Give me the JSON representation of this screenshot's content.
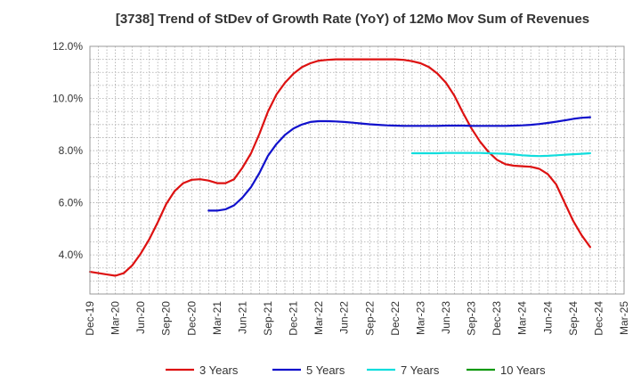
{
  "chart_data": {
    "type": "line",
    "title": "[3738]  Trend of StDev of Growth Rate (YoY) of 12Mo Mov Sum of Revenues",
    "xlabel": "",
    "ylabel": "",
    "ylim": [
      2.5,
      12.0
    ],
    "y_ticks": [
      4.0,
      6.0,
      8.0,
      10.0,
      12.0
    ],
    "y_tick_labels": [
      "4.0%",
      "6.0%",
      "8.0%",
      "10.0%",
      "12.0%"
    ],
    "x_tick_labels": [
      "Dec-19",
      "Mar-20",
      "Jun-20",
      "Sep-20",
      "Dec-20",
      "Mar-21",
      "Jun-21",
      "Sep-21",
      "Dec-21",
      "Mar-22",
      "Jun-22",
      "Sep-22",
      "Dec-22",
      "Mar-23",
      "Jun-23",
      "Sep-23",
      "Dec-23",
      "Mar-24",
      "Jun-24",
      "Sep-24",
      "Dec-24",
      "Mar-25"
    ],
    "grid": true,
    "legend_position": "bottom",
    "series": [
      {
        "name": "3 Years",
        "color": "#dd1111",
        "start_index": 0,
        "values": [
          3.35,
          3.3,
          3.25,
          3.2,
          3.3,
          3.6,
          4.05,
          4.6,
          5.25,
          5.95,
          6.45,
          6.75,
          6.88,
          6.9,
          6.85,
          6.75,
          6.75,
          6.9,
          7.35,
          7.9,
          8.65,
          9.5,
          10.15,
          10.6,
          10.95,
          11.2,
          11.35,
          11.45,
          11.48,
          11.5,
          11.5,
          11.5,
          11.5,
          11.5,
          11.5,
          11.5,
          11.5,
          11.48,
          11.43,
          11.35,
          11.2,
          10.95,
          10.6,
          10.1,
          9.45,
          8.85,
          8.35,
          7.95,
          7.65,
          7.48,
          7.42,
          7.4,
          7.38,
          7.3,
          7.1,
          6.7,
          6.0,
          5.3,
          4.75,
          4.3
        ]
      },
      {
        "name": "5 Years",
        "color": "#1111cc",
        "start_index": 14,
        "values": [
          5.7,
          5.7,
          5.75,
          5.9,
          6.2,
          6.6,
          7.15,
          7.8,
          8.25,
          8.6,
          8.85,
          9.0,
          9.1,
          9.13,
          9.13,
          9.12,
          9.1,
          9.07,
          9.04,
          9.01,
          8.99,
          8.97,
          8.96,
          8.95,
          8.95,
          8.95,
          8.95,
          8.95,
          8.96,
          8.96,
          8.96,
          8.95,
          8.95,
          8.95,
          8.95,
          8.95,
          8.96,
          8.97,
          8.99,
          9.02,
          9.06,
          9.11,
          9.16,
          9.22,
          9.26,
          9.28
        ]
      },
      {
        "name": "7 Years",
        "color": "#11dddd",
        "start_index": 38,
        "values": [
          7.9,
          7.9,
          7.9,
          7.9,
          7.91,
          7.91,
          7.91,
          7.91,
          7.91,
          7.9,
          7.89,
          7.88,
          7.85,
          7.82,
          7.8,
          7.79,
          7.8,
          7.82,
          7.84,
          7.86,
          7.88,
          7.9
        ]
      },
      {
        "name": "10 Years",
        "color": "#119911",
        "start_index": 0,
        "values": []
      }
    ]
  }
}
